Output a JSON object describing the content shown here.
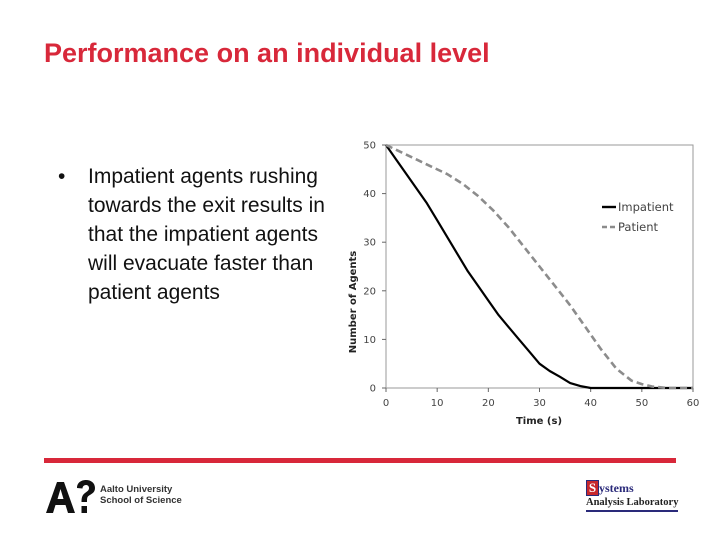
{
  "slide": {
    "title": "Performance on an individual level",
    "bullet": "Impatient agents rushing towards the exit results in that the impatient agents will evacuate faster than patient agents",
    "bullet_marker": "•"
  },
  "footer": {
    "university_line1": "Aalto University",
    "university_line2": "School of Science",
    "lab_logo_letter": "S",
    "lab_logo_top": "ystems",
    "lab_logo_bottom": "Analysis Laboratory"
  },
  "colors": {
    "title": "#d8283a",
    "impatient": "#000000",
    "patient": "#8c8c8c"
  },
  "chart_data": {
    "type": "line",
    "title": "",
    "xlabel": "Time (s)",
    "ylabel": "Number of Agents",
    "xlim": [
      0,
      60
    ],
    "ylim": [
      0,
      50
    ],
    "xticks": [
      0,
      10,
      20,
      30,
      40,
      50,
      60
    ],
    "yticks": [
      0,
      10,
      20,
      30,
      40,
      50
    ],
    "grid": false,
    "legend_position": "right",
    "series": [
      {
        "name": "Impatient",
        "style": "solid",
        "x": [
          0,
          2,
          4,
          6,
          8,
          10,
          12,
          14,
          16,
          18,
          20,
          22,
          24,
          26,
          28,
          30,
          32,
          34,
          36,
          38,
          40,
          45,
          50,
          55,
          60
        ],
        "y": [
          50,
          47,
          44,
          41,
          38,
          34.5,
          31,
          27.5,
          24,
          21,
          18,
          15,
          12.5,
          10,
          7.5,
          5,
          3.5,
          2.3,
          1,
          0.4,
          0,
          0,
          0,
          0,
          0
        ]
      },
      {
        "name": "Patient",
        "style": "dashed",
        "x": [
          0,
          3,
          6,
          9,
          12,
          15,
          18,
          21,
          24,
          27,
          30,
          33,
          36,
          39,
          42,
          45,
          48,
          50,
          52,
          55,
          60
        ],
        "y": [
          50,
          48.5,
          47,
          45.5,
          44,
          42,
          39.5,
          36.5,
          33,
          29,
          25,
          21,
          17,
          12.5,
          8,
          4,
          1.5,
          0.8,
          0.3,
          0,
          0
        ]
      }
    ]
  }
}
